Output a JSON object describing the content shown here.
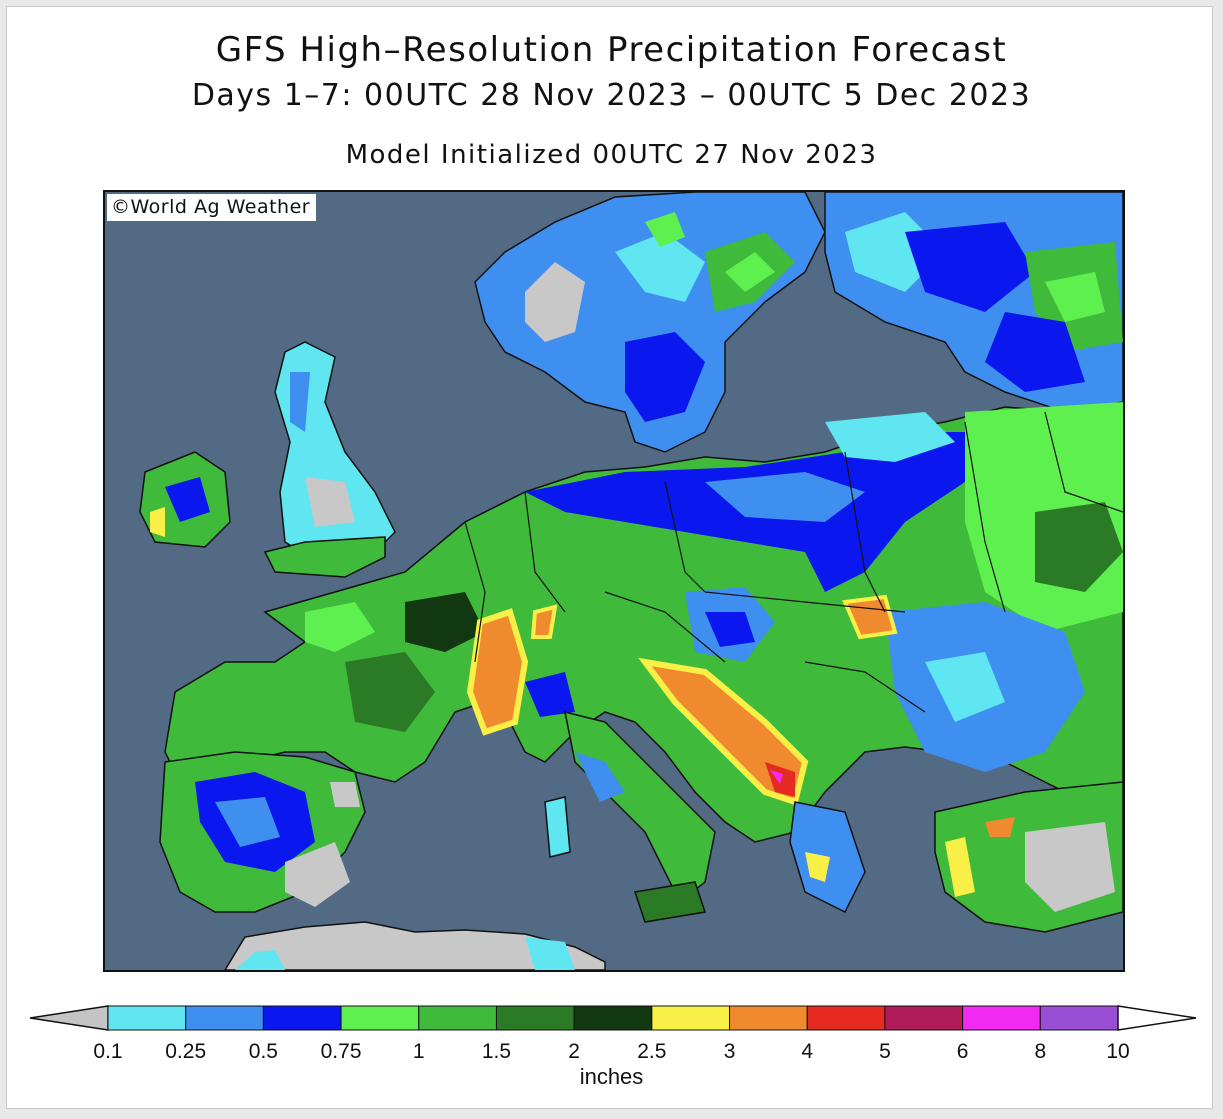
{
  "title": "GFS High–Resolution Precipitation Forecast",
  "subtitle": "Days 1–7: 00UTC 28 Nov 2023 – 00UTC 5 Dec 2023",
  "init_line": "Model Initialized 00UTC 27 Nov 2023",
  "credit": "©World Ag Weather",
  "map": {
    "region": "Europe",
    "ocean_color": "#536a84",
    "land_color": "#c8c8c8"
  },
  "legend": {
    "units": "inches",
    "ticks": [
      "0.1",
      "0.25",
      "0.5",
      "0.75",
      "1",
      "1.5",
      "2",
      "2.5",
      "3",
      "4",
      "5",
      "6",
      "8",
      "10"
    ],
    "below_color": "#c4c4c4",
    "above_color": "#ffffff",
    "bins": [
      {
        "from": "0.1",
        "to": "0.25",
        "color": "#5fe6f0"
      },
      {
        "from": "0.25",
        "to": "0.5",
        "color": "#3f8ff0"
      },
      {
        "from": "0.5",
        "to": "0.75",
        "color": "#0a17ef"
      },
      {
        "from": "0.75",
        "to": "1",
        "color": "#5ef04f"
      },
      {
        "from": "1",
        "to": "1.5",
        "color": "#3fba3a"
      },
      {
        "from": "1.5",
        "to": "2",
        "color": "#2a7a26"
      },
      {
        "from": "2",
        "to": "2.5",
        "color": "#123812"
      },
      {
        "from": "2.5",
        "to": "3",
        "color": "#f8f046"
      },
      {
        "from": "3",
        "to": "4",
        "color": "#f08a2e"
      },
      {
        "from": "4",
        "to": "5",
        "color": "#e52a22"
      },
      {
        "from": "5",
        "to": "6",
        "color": "#b01b5a"
      },
      {
        "from": "6",
        "to": "8",
        "color": "#f02af0"
      },
      {
        "from": "8",
        "to": "10",
        "color": "#9a4ed6"
      }
    ]
  }
}
